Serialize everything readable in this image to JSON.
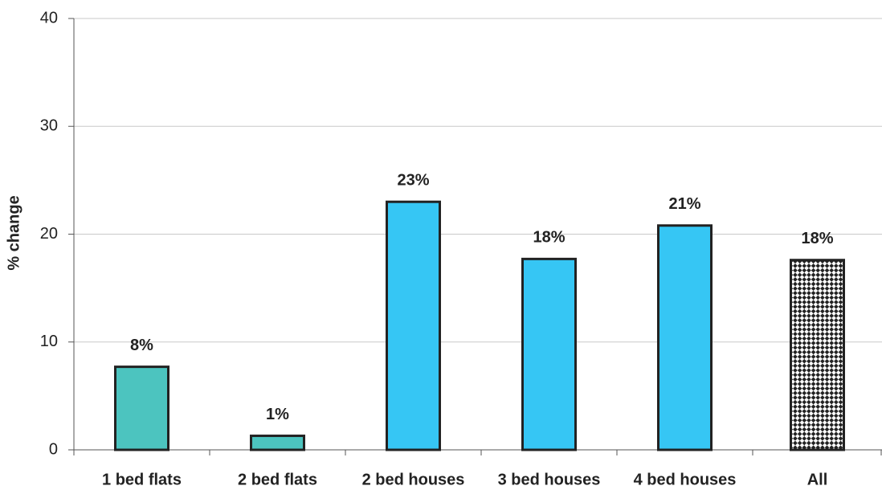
{
  "chart_data": {
    "type": "bar",
    "y_label": "% change",
    "categories": [
      "1 bed flats",
      "2 bed flats",
      "2 bed houses",
      "3 bed houses",
      "4 bed houses",
      "All"
    ],
    "values": [
      7.7,
      1.3,
      23.0,
      17.7,
      20.8,
      17.6
    ],
    "value_labels": [
      "8%",
      "1%",
      "23%",
      "18%",
      "21%",
      "18%"
    ],
    "colors": [
      "#4cc4bf",
      "#4cc4bf",
      "#36c6f4",
      "#36c6f4",
      "#36c6f4",
      "#222222"
    ],
    "hatched_categories": [
      "All"
    ],
    "ylim": [
      0,
      40
    ],
    "yticks": [
      0,
      10,
      20,
      30,
      40
    ],
    "grid": true
  }
}
